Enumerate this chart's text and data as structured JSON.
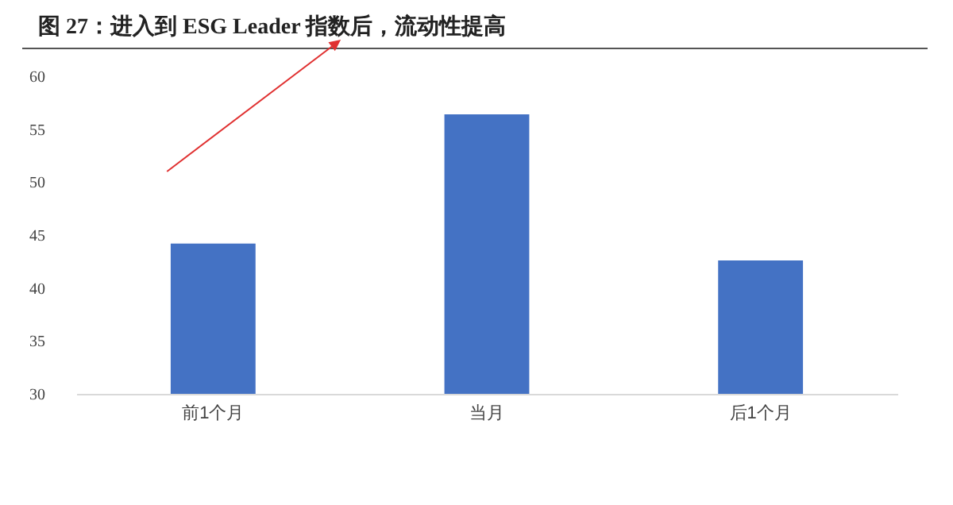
{
  "chart_data": {
    "type": "bar",
    "title": "图 27：进入到 ESG Leader 指数后，流动性提高",
    "categories": [
      "前1个月",
      "当月",
      "后1个月"
    ],
    "values": [
      44.2,
      56.4,
      42.6
    ],
    "color": "#4472c4",
    "ylim": [
      30,
      60
    ],
    "yticks": [
      30,
      35,
      40,
      45,
      50,
      55,
      60
    ],
    "grid": false
  }
}
